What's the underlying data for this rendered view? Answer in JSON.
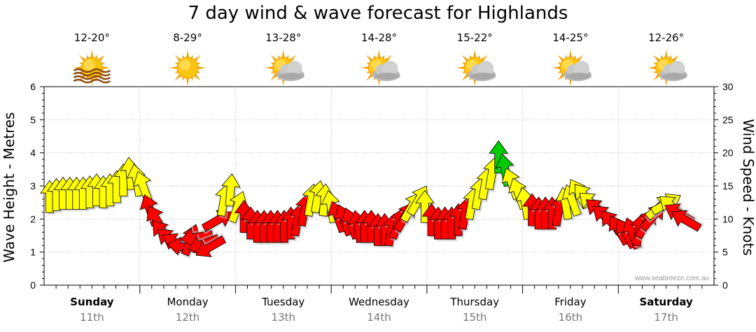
{
  "chart_data": {
    "type": "line",
    "title": "7 day wind & wave forecast for Highlands",
    "ylabel_left": "Wave Height - Metres",
    "ylabel_right": "Wind Speed - Knots",
    "ylim_left": [
      0,
      6
    ],
    "ylim_right": [
      0,
      30
    ],
    "yticks_left": [
      "0",
      "1",
      "2",
      "3",
      "4",
      "5",
      "6"
    ],
    "yticks_right": [
      "0",
      "5",
      "10",
      "15",
      "20",
      "25",
      "30"
    ],
    "grid": true,
    "watermark": "www.seabreeze.com.au",
    "days": [
      {
        "name": "Sunday",
        "date": "11th",
        "temp": "12-20°",
        "icon": "sun-haze-icon",
        "bold": true
      },
      {
        "name": "Monday",
        "date": "12th",
        "temp": "8-29°",
        "icon": "sun-icon",
        "bold": false
      },
      {
        "name": "Tuesday",
        "date": "13th",
        "temp": "13-28°",
        "icon": "sun-cloud-icon",
        "bold": false
      },
      {
        "name": "Wednesday",
        "date": "14th",
        "temp": "14-28°",
        "icon": "sun-cloud-icon",
        "bold": false
      },
      {
        "name": "Thursday",
        "date": "15th",
        "temp": "15-22°",
        "icon": "sun-cloud-icon",
        "bold": false
      },
      {
        "name": "Friday",
        "date": "16th",
        "temp": "14-25°",
        "icon": "sun-cloud-icon",
        "bold": false
      },
      {
        "name": "Saturday",
        "date": "17th",
        "temp": "12-26°",
        "icon": "sun-cloud-icon",
        "bold": true
      }
    ],
    "series": [
      {
        "name": "Wind",
        "unit": "knots",
        "colors": {
          "light": "#ffff00",
          "moderate": "#ff0000",
          "strong": "#00cc00"
        },
        "points": [
          {
            "d": 0.0,
            "v": 13.5,
            "dir": 0
          },
          {
            "d": 0.07,
            "v": 13.8,
            "dir": 0
          },
          {
            "d": 0.14,
            "v": 14.0,
            "dir": 0
          },
          {
            "d": 0.21,
            "v": 14.0,
            "dir": 0
          },
          {
            "d": 0.28,
            "v": 14.0,
            "dir": 0
          },
          {
            "d": 0.35,
            "v": 14.0,
            "dir": 0
          },
          {
            "d": 0.42,
            "v": 14.2,
            "dir": 0
          },
          {
            "d": 0.49,
            "v": 14.5,
            "dir": 0
          },
          {
            "d": 0.56,
            "v": 14.2,
            "dir": 0
          },
          {
            "d": 0.63,
            "v": 14.5,
            "dir": 0
          },
          {
            "d": 0.7,
            "v": 15.0,
            "dir": 0
          },
          {
            "d": 0.77,
            "v": 16.0,
            "dir": 0
          },
          {
            "d": 0.84,
            "v": 17.0,
            "dir": -5
          },
          {
            "d": 0.91,
            "v": 16.0,
            "dir": -10
          },
          {
            "d": 0.98,
            "v": 15.0,
            "dir": -20
          },
          {
            "d": 1.05,
            "v": 11.5,
            "dir": -20
          },
          {
            "d": 1.12,
            "v": 10.0,
            "dir": -30
          },
          {
            "d": 1.19,
            "v": 8.0,
            "dir": -40
          },
          {
            "d": 1.26,
            "v": 7.0,
            "dir": -50
          },
          {
            "d": 1.33,
            "v": 6.5,
            "dir": -60
          },
          {
            "d": 1.4,
            "v": 6.0,
            "dir": -80
          },
          {
            "d": 1.47,
            "v": 7.0,
            "dir": 20
          },
          {
            "d": 1.54,
            "v": 7.5,
            "dir": -100
          },
          {
            "d": 1.61,
            "v": 6.5,
            "dir": -110
          },
          {
            "d": 1.68,
            "v": 6.0,
            "dir": -120
          },
          {
            "d": 1.75,
            "v": 10.0,
            "dir": 60
          },
          {
            "d": 1.82,
            "v": 13.0,
            "dir": 10
          },
          {
            "d": 1.89,
            "v": 14.5,
            "dir": 5
          },
          {
            "d": 1.96,
            "v": 12.0,
            "dir": 20
          },
          {
            "d": 2.03,
            "v": 10.5,
            "dir": 0
          },
          {
            "d": 2.1,
            "v": 9.5,
            "dir": 0
          },
          {
            "d": 2.17,
            "v": 9.0,
            "dir": 0
          },
          {
            "d": 2.24,
            "v": 9.0,
            "dir": 0
          },
          {
            "d": 2.31,
            "v": 9.0,
            "dir": 0
          },
          {
            "d": 2.38,
            "v": 9.0,
            "dir": 0
          },
          {
            "d": 2.45,
            "v": 9.0,
            "dir": 0
          },
          {
            "d": 2.52,
            "v": 9.5,
            "dir": 0
          },
          {
            "d": 2.59,
            "v": 10.0,
            "dir": 10
          },
          {
            "d": 2.66,
            "v": 11.5,
            "dir": 10
          },
          {
            "d": 2.73,
            "v": 13.0,
            "dir": 10
          },
          {
            "d": 2.8,
            "v": 13.5,
            "dir": 10
          },
          {
            "d": 2.87,
            "v": 13.0,
            "dir": 5
          },
          {
            "d": 2.94,
            "v": 12.0,
            "dir": -10
          },
          {
            "d": 3.01,
            "v": 10.5,
            "dir": -20
          },
          {
            "d": 3.08,
            "v": 10.0,
            "dir": -20
          },
          {
            "d": 3.15,
            "v": 9.5,
            "dir": -20
          },
          {
            "d": 3.22,
            "v": 9.0,
            "dir": -10
          },
          {
            "d": 3.29,
            "v": 9.0,
            "dir": 0
          },
          {
            "d": 3.36,
            "v": 9.0,
            "dir": 0
          },
          {
            "d": 3.43,
            "v": 8.5,
            "dir": 0
          },
          {
            "d": 3.5,
            "v": 8.5,
            "dir": 0
          },
          {
            "d": 3.57,
            "v": 8.5,
            "dir": 10
          },
          {
            "d": 3.64,
            "v": 9.5,
            "dir": 20
          },
          {
            "d": 3.71,
            "v": 10.5,
            "dir": 30
          },
          {
            "d": 3.78,
            "v": 12.0,
            "dir": 30
          },
          {
            "d": 3.85,
            "v": 13.0,
            "dir": 30
          },
          {
            "d": 3.92,
            "v": 12.0,
            "dir": 0
          },
          {
            "d": 3.99,
            "v": 10.0,
            "dir": 0
          },
          {
            "d": 4.06,
            "v": 9.5,
            "dir": 0
          },
          {
            "d": 4.13,
            "v": 9.5,
            "dir": 0
          },
          {
            "d": 4.2,
            "v": 9.5,
            "dir": 0
          },
          {
            "d": 4.27,
            "v": 10.0,
            "dir": 0
          },
          {
            "d": 4.34,
            "v": 11.0,
            "dir": 10
          },
          {
            "d": 4.41,
            "v": 12.5,
            "dir": 10
          },
          {
            "d": 4.48,
            "v": 14.0,
            "dir": 10
          },
          {
            "d": 4.55,
            "v": 15.5,
            "dir": 10
          },
          {
            "d": 4.62,
            "v": 17.0,
            "dir": 10
          },
          {
            "d": 4.69,
            "v": 19.5,
            "dir": 0
          },
          {
            "d": 4.76,
            "v": 17.5,
            "dir": -10
          },
          {
            "d": 4.83,
            "v": 15.5,
            "dir": -20
          },
          {
            "d": 4.9,
            "v": 14.0,
            "dir": -20
          },
          {
            "d": 4.97,
            "v": 12.5,
            "dir": -10
          },
          {
            "d": 5.04,
            "v": 11.5,
            "dir": 0
          },
          {
            "d": 5.11,
            "v": 11.0,
            "dir": 0
          },
          {
            "d": 5.18,
            "v": 11.0,
            "dir": 0
          },
          {
            "d": 5.25,
            "v": 11.0,
            "dir": 0
          },
          {
            "d": 5.32,
            "v": 11.5,
            "dir": 10
          },
          {
            "d": 5.39,
            "v": 12.5,
            "dir": -10
          },
          {
            "d": 5.46,
            "v": 13.0,
            "dir": -20
          },
          {
            "d": 5.53,
            "v": 14.0,
            "dir": -30
          },
          {
            "d": 5.6,
            "v": 13.5,
            "dir": -40
          },
          {
            "d": 5.67,
            "v": 12.5,
            "dir": -50
          },
          {
            "d": 5.74,
            "v": 11.5,
            "dir": -50
          },
          {
            "d": 5.81,
            "v": 10.5,
            "dir": -50
          },
          {
            "d": 5.88,
            "v": 9.5,
            "dir": -40
          },
          {
            "d": 5.95,
            "v": 8.5,
            "dir": -30
          },
          {
            "d": 6.02,
            "v": 8.0,
            "dir": -30
          },
          {
            "d": 6.09,
            "v": 8.0,
            "dir": -20
          },
          {
            "d": 6.16,
            "v": 8.5,
            "dir": 10
          },
          {
            "d": 6.23,
            "v": 9.5,
            "dir": 30
          },
          {
            "d": 6.3,
            "v": 10.5,
            "dir": 40
          },
          {
            "d": 6.37,
            "v": 12.0,
            "dir": 50
          },
          {
            "d": 6.44,
            "v": 12.5,
            "dir": 60
          },
          {
            "d": 6.51,
            "v": 12.0,
            "dir": -50
          },
          {
            "d": 6.58,
            "v": 11.0,
            "dir": -60
          },
          {
            "d": 6.65,
            "v": 10.0,
            "dir": -60
          }
        ]
      }
    ]
  }
}
